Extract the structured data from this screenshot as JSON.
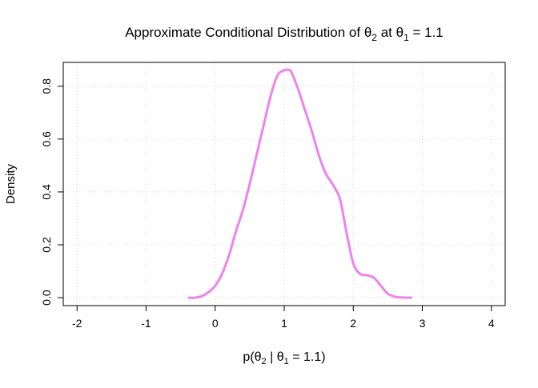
{
  "chart_data": {
    "type": "line",
    "title": {
      "prefix": "Approximate Conditional Distribution of θ",
      "prefix_sub": "2",
      "middle": " at θ",
      "middle_sub": "1",
      "suffix": " = 1.1"
    },
    "xlabel": {
      "prefix": "p(θ",
      "sub1": "2",
      "bar": " | θ",
      "sub2": "1",
      "suffix": " = 1.1)"
    },
    "ylabel": "Density",
    "xlim": [
      -2.2,
      4.2
    ],
    "ylim": [
      -0.03,
      0.89
    ],
    "x_ticks": [
      -2,
      -1,
      0,
      1,
      2,
      3,
      4
    ],
    "x_tick_labels": [
      "-2",
      "-1",
      "0",
      "1",
      "2",
      "3",
      "4"
    ],
    "y_ticks": [
      0.0,
      0.2,
      0.4,
      0.6,
      0.8
    ],
    "y_tick_labels": [
      "0.0",
      "0.2",
      "0.4",
      "0.6",
      "0.8"
    ],
    "grid": true,
    "grid_style": "dotted",
    "line_color": "#ee82ee",
    "series": [
      {
        "x": [
          -0.38,
          -0.3,
          -0.2,
          -0.1,
          0.0,
          0.1,
          0.2,
          0.3,
          0.4,
          0.5,
          0.6,
          0.7,
          0.8,
          0.9,
          1.0,
          1.05,
          1.1,
          1.2,
          1.3,
          1.4,
          1.5,
          1.6,
          1.7,
          1.8,
          1.85,
          1.9,
          2.0,
          2.1,
          2.2,
          2.3,
          2.4,
          2.5,
          2.6,
          2.7,
          2.84
        ],
        "y": [
          0.0,
          0.0,
          0.005,
          0.02,
          0.045,
          0.09,
          0.16,
          0.25,
          0.33,
          0.43,
          0.54,
          0.65,
          0.76,
          0.84,
          0.86,
          0.862,
          0.855,
          0.79,
          0.71,
          0.63,
          0.54,
          0.47,
          0.43,
          0.38,
          0.32,
          0.25,
          0.13,
          0.09,
          0.085,
          0.075,
          0.045,
          0.015,
          0.004,
          0.001,
          0.0
        ]
      }
    ]
  }
}
